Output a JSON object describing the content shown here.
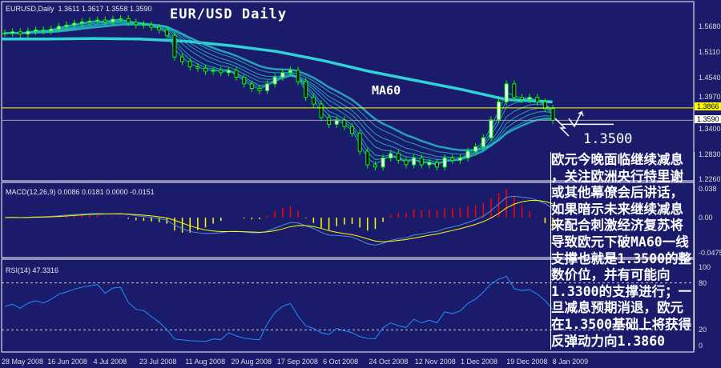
{
  "header": {
    "symbol": "EURUSD,Daily",
    "ohlc": "1.3611 1.3617 1.3558 1.3590",
    "title": "EUR/USD Daily"
  },
  "annotations": {
    "ma60_label": "MA60",
    "level_label": "1.3500",
    "note_lines": [
      "欧元今晚面临继续减息",
      "，关注欧洲央行特里谢",
      "或其他幕僚会后讲话，",
      "如果暗示未来继续减息",
      "来配合刺激经济复苏将",
      "导致欧元下破MA60一线",
      "支撑也就是1.3500的整",
      "数价位，并有可能向",
      "1.3300的支撑进行；一",
      "旦减息预期消退，欧元",
      "在1.3500基础上将获得",
      "反弹动力向1.3860"
    ]
  },
  "colors": {
    "background": "#1b1b6b",
    "candle": "#00ff00",
    "ma_long": "#2ed3d8",
    "ma_fan": "#28b8c8",
    "resistance": "#ffff00",
    "current": "#a0a0a0",
    "macd_main": "#4a8fd8",
    "macd_signal": "#ffff00",
    "hist_pos": "#ff0000",
    "hist_neg": "#ffff00",
    "rsi": "#1e90ff"
  },
  "chart_data": [
    {
      "type": "candlestick",
      "title": "EUR/USD Daily",
      "price_axis_ticks": [
        "1.5680",
        "1.5110",
        "1.4540",
        "1.3970",
        "1.3400",
        "1.2830",
        "1.2260"
      ],
      "price_tags": {
        "resistance": "1.3866",
        "current": "1.3590"
      },
      "ylim": [
        1.226,
        1.598
      ],
      "x_tick_labels": [
        "28 May 2008",
        "16 Jun 2008",
        "4 Jul 2008",
        "23 Jul 2008",
        "11 Aug 2008",
        "29 Aug 2008",
        "17 Sep 2008",
        "6 Oct 2008",
        "24 Oct 2008",
        "12 Nov 2008",
        "1 Dec 2008",
        "19 Dec 2008",
        "8 Jan 2009"
      ],
      "closes": [
        1.553,
        1.556,
        1.551,
        1.557,
        1.56,
        1.558,
        1.562,
        1.568,
        1.571,
        1.575,
        1.578,
        1.58,
        1.582,
        1.578,
        1.584,
        1.585,
        1.577,
        1.572,
        1.571,
        1.566,
        1.56,
        1.548,
        1.5,
        1.49,
        1.478,
        1.475,
        1.468,
        1.47,
        1.465,
        1.47,
        1.455,
        1.44,
        1.43,
        1.425,
        1.44,
        1.455,
        1.465,
        1.47,
        1.445,
        1.41,
        1.395,
        1.365,
        1.35,
        1.36,
        1.345,
        1.33,
        1.29,
        1.26,
        1.255,
        1.275,
        1.285,
        1.27,
        1.26,
        1.275,
        1.26,
        1.265,
        1.255,
        1.275,
        1.27,
        1.275,
        1.29,
        1.3,
        1.32,
        1.36,
        1.4,
        1.44,
        1.41,
        1.405,
        1.41,
        1.4,
        1.385,
        1.359
      ],
      "ma_long_at_ticks": [
        1.54,
        1.54,
        1.541,
        1.54,
        1.535,
        1.525,
        1.512,
        1.492,
        1.468,
        1.448,
        1.428,
        1.405,
        1.4
      ],
      "horizontal_levels": [
        1.3866,
        1.359,
        1.35
      ]
    },
    {
      "type": "line",
      "title": "MACD(12,26,9) 0.0086 0.0181 0.0000 -0.0151",
      "axis_ticks": [
        "0.038",
        "0.00",
        "-0.0475"
      ],
      "ylim": [
        -0.0475,
        0.038
      ]
    },
    {
      "type": "line",
      "title": "RSI(14) 47.3316",
      "axis_ticks": [
        "100",
        "80",
        "20",
        "0"
      ],
      "ylim": [
        0,
        100
      ],
      "levels": [
        80,
        20
      ]
    }
  ]
}
